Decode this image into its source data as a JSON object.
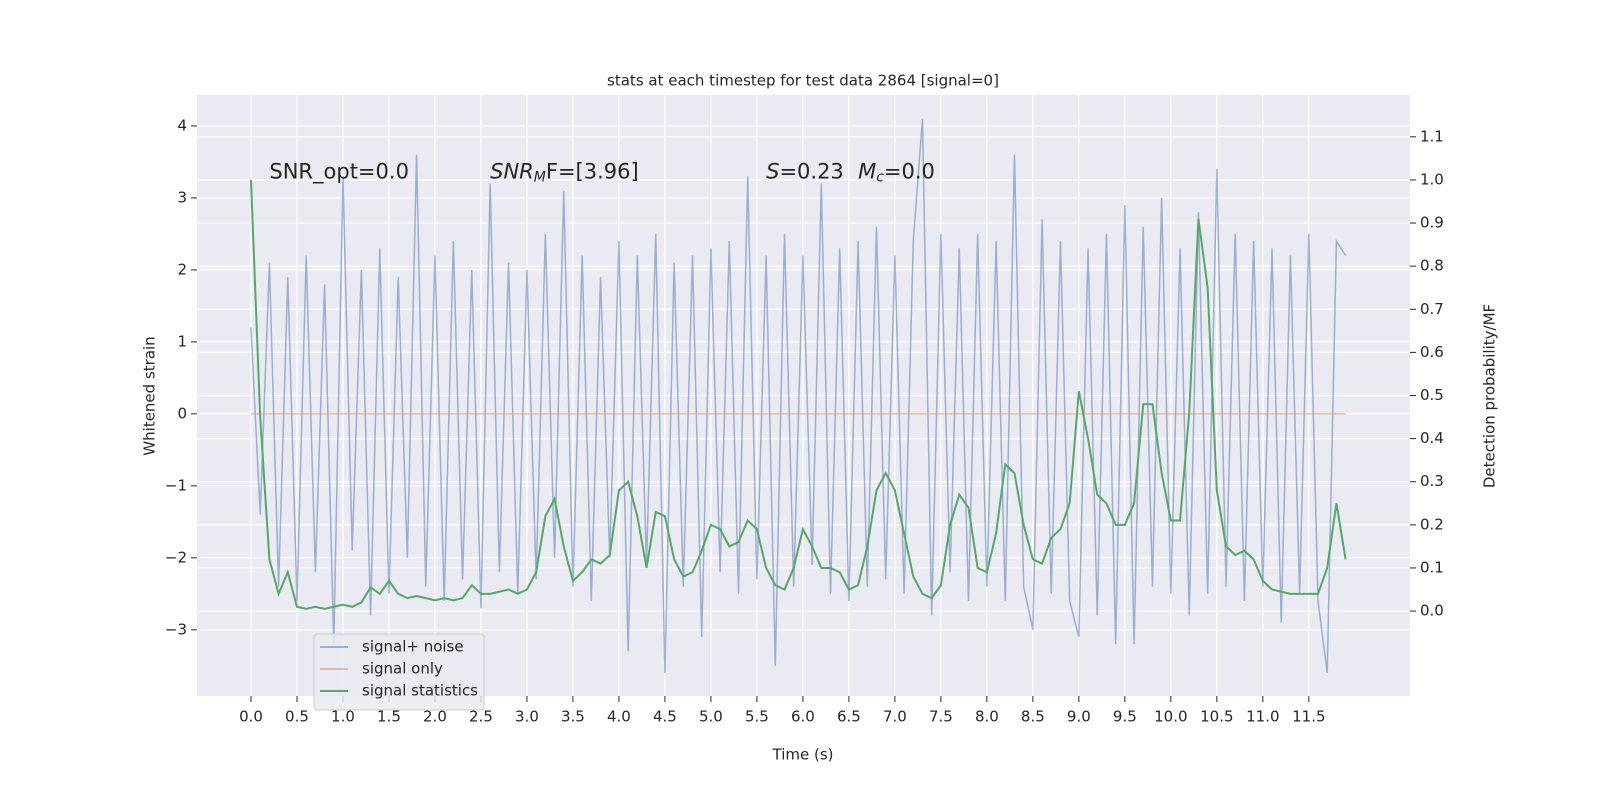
{
  "chart_data": {
    "type": "line",
    "title": "stats at each timestep for test data 2864 [signal=0]",
    "xlabel": "Time (s)",
    "ylabel": "Whitened strain",
    "y2label": "Detection probability/MF",
    "annotations": [
      {
        "parts": [
          "SNR_opt=0.0"
        ],
        "x": 0.2,
        "y": 3.35
      },
      {
        "parts": [
          "SNR",
          "M",
          "F=[3.96]"
        ],
        "x": 2.6,
        "y": 3.35
      },
      {
        "parts": [
          "S",
          "=0.23"
        ],
        "x": 5.6,
        "y": 3.35
      },
      {
        "parts": [
          "M",
          "c",
          "=0.0"
        ],
        "x": 6.6,
        "y": 3.35
      }
    ],
    "xlim": [
      -0.587,
      12.6
    ],
    "ylim": [
      -3.92,
      4.43
    ],
    "y2lim": [
      -0.197,
      1.197
    ],
    "xticks": [
      {
        "value": 0,
        "label": "0.0"
      },
      0.5,
      {
        "value": 1,
        "label": "1.0"
      },
      1.5,
      {
        "value": 2,
        "label": "2.0"
      },
      2.5,
      {
        "value": 3,
        "label": "3.0"
      },
      3.5,
      {
        "value": 4,
        "label": "4.0"
      },
      4.5,
      {
        "value": 5,
        "label": "5.0"
      },
      5.5,
      {
        "value": 6,
        "label": "6.0"
      },
      6.5,
      {
        "value": 7,
        "label": "7.0"
      },
      7.5,
      {
        "value": 8,
        "label": "8.0"
      },
      8.5,
      {
        "value": 9,
        "label": "9.0"
      },
      9.5,
      {
        "value": 10,
        "label": "10.0"
      },
      10.5,
      {
        "value": 11,
        "label": "11.0"
      },
      11.5
    ],
    "yticks": [
      {
        "value": -3,
        "label": "−3"
      },
      {
        "value": -2,
        "label": "−2"
      },
      {
        "value": -1,
        "label": "−1"
      },
      0,
      1,
      2,
      3,
      4
    ],
    "y2ticks": [
      {
        "value": 0,
        "label": "0.0"
      },
      0.1,
      0.2,
      0.3,
      0.4,
      0.5,
      0.6,
      0.7,
      0.8,
      0.9,
      {
        "value": 1,
        "label": "1.0"
      },
      1.1
    ],
    "grid": true,
    "legend": "lower left",
    "x": [
      0,
      0.1,
      0.2,
      0.3,
      0.4,
      0.5,
      0.6,
      0.7,
      0.8,
      0.9,
      1,
      1.1,
      1.2,
      1.3,
      1.4,
      1.5,
      1.6,
      1.7,
      1.8,
      1.9,
      2,
      2.1,
      2.2,
      2.3,
      2.4,
      2.5,
      2.6,
      2.7,
      2.8,
      2.9,
      3,
      3.1,
      3.2,
      3.3,
      3.4,
      3.5,
      3.6,
      3.7,
      3.8,
      3.9,
      4,
      4.1,
      4.2,
      4.3,
      4.4,
      4.5,
      4.6,
      4.7,
      4.8,
      4.9,
      5,
      5.1,
      5.2,
      5.3,
      5.4,
      5.5,
      5.6,
      5.7,
      5.8,
      5.9,
      6,
      6.1,
      6.2,
      6.3,
      6.4,
      6.5,
      6.6,
      6.7,
      6.8,
      6.9,
      7,
      7.1,
      7.2,
      7.3,
      7.4,
      7.5,
      7.6,
      7.7,
      7.8,
      7.9,
      8,
      8.1,
      8.2,
      8.3,
      8.4,
      8.5,
      8.6,
      8.7,
      8.8,
      8.9,
      9,
      9.1,
      9.2,
      9.3,
      9.4,
      9.5,
      9.6,
      9.7,
      9.8,
      9.9,
      10,
      10.1,
      10.2,
      10.3,
      10.4,
      10.5,
      10.6,
      10.7,
      10.8,
      10.9,
      11,
      11.1,
      11.2,
      11.3,
      11.4,
      11.5,
      11.6,
      11.7,
      11.8,
      11.9
    ],
    "series": [
      {
        "name": "signal+ noise",
        "color": "#4c72b0",
        "axis": "y",
        "values": [
          1.2,
          -1.4,
          2.1,
          -2.4,
          1.9,
          -2.6,
          2.2,
          -2.2,
          1.8,
          -3.2,
          3.3,
          -1.9,
          2.0,
          -2.8,
          2.3,
          -2.5,
          1.9,
          -2.0,
          3.6,
          -2.4,
          2.2,
          -2.6,
          2.4,
          -2.3,
          2.0,
          -2.7,
          3.2,
          -2.2,
          2.1,
          -2.5,
          2.0,
          -2.3,
          2.5,
          -2.0,
          3.1,
          -2.4,
          2.2,
          -2.6,
          1.9,
          -2.0,
          2.4,
          -3.3,
          2.2,
          -2.1,
          2.5,
          -3.6,
          2.1,
          -2.4,
          2.2,
          -3.1,
          2.3,
          -2.2,
          2.4,
          -2.5,
          3.3,
          -2.3,
          2.2,
          -3.5,
          2.5,
          -2.4,
          2.2,
          -2.1,
          3.2,
          -2.5,
          2.3,
          -2.6,
          2.4,
          -2.4,
          2.6,
          -2.3,
          2.2,
          -2.5,
          2.4,
          4.1,
          -2.8,
          2.5,
          -2.2,
          2.3,
          -2.6,
          2.5,
          -2.4,
          2.4,
          -2.6,
          3.6,
          -2.4,
          -3.0,
          2.7,
          -2.5,
          2.4,
          -2.6,
          -3.1,
          2.3,
          -2.8,
          2.5,
          -3.2,
          2.9,
          -3.2,
          2.6,
          -2.4,
          3.0,
          -2.5,
          2.3,
          -2.8,
          2.8,
          -2.5,
          3.4,
          -2.4,
          2.5,
          -2.6,
          2.4,
          -2.4,
          2.3,
          -2.9,
          2.2,
          -2.5,
          2.5,
          -2.6,
          -3.6,
          2.4,
          2.2
        ]
      },
      {
        "name": "signal only",
        "color": "#dd8452",
        "axis": "y",
        "values": [
          0,
          0,
          0,
          0,
          0,
          0,
          0,
          0,
          0,
          0,
          0,
          0,
          0,
          0,
          0,
          0,
          0,
          0,
          0,
          0,
          0,
          0,
          0,
          0,
          0,
          0,
          0,
          0,
          0,
          0,
          0,
          0,
          0,
          0,
          0,
          0,
          0,
          0,
          0,
          0,
          0,
          0,
          0,
          0,
          0,
          0,
          0,
          0,
          0,
          0,
          0,
          0,
          0,
          0,
          0,
          0,
          0,
          0,
          0,
          0,
          0,
          0,
          0,
          0,
          0,
          0,
          0,
          0,
          0,
          0,
          0,
          0,
          0,
          0,
          0,
          0,
          0,
          0,
          0,
          0,
          0,
          0,
          0,
          0,
          0,
          0,
          0,
          0,
          0,
          0,
          0,
          0,
          0,
          0,
          0,
          0,
          0,
          0,
          0,
          0,
          0,
          0,
          0,
          0,
          0,
          0,
          0,
          0,
          0,
          0,
          0,
          0,
          0,
          0,
          0,
          0,
          0,
          0,
          0,
          0
        ]
      },
      {
        "name": "signal statistics",
        "color": "#55a868",
        "axis": "y2",
        "values": [
          1.0,
          0.45,
          0.12,
          0.04,
          0.09,
          0.01,
          0.005,
          0.01,
          0.005,
          0.01,
          0.015,
          0.01,
          0.02,
          0.055,
          0.04,
          0.07,
          0.04,
          0.03,
          0.035,
          0.03,
          0.025,
          0.03,
          0.025,
          0.03,
          0.06,
          0.04,
          0.04,
          0.045,
          0.05,
          0.04,
          0.05,
          0.09,
          0.22,
          0.26,
          0.15,
          0.07,
          0.09,
          0.12,
          0.11,
          0.13,
          0.28,
          0.3,
          0.22,
          0.1,
          0.23,
          0.22,
          0.12,
          0.08,
          0.09,
          0.14,
          0.2,
          0.19,
          0.15,
          0.16,
          0.21,
          0.19,
          0.1,
          0.06,
          0.05,
          0.1,
          0.19,
          0.15,
          0.1,
          0.1,
          0.09,
          0.05,
          0.06,
          0.15,
          0.28,
          0.32,
          0.28,
          0.18,
          0.08,
          0.04,
          0.03,
          0.06,
          0.2,
          0.27,
          0.24,
          0.1,
          0.09,
          0.18,
          0.34,
          0.32,
          0.2,
          0.12,
          0.11,
          0.17,
          0.19,
          0.25,
          0.51,
          0.4,
          0.27,
          0.25,
          0.2,
          0.2,
          0.25,
          0.48,
          0.48,
          0.32,
          0.21,
          0.21,
          0.46,
          0.91,
          0.75,
          0.28,
          0.15,
          0.13,
          0.14,
          0.12,
          0.07,
          0.05,
          0.045,
          0.04,
          0.04,
          0.04,
          0.04,
          0.1,
          0.25,
          0.12
        ]
      }
    ]
  }
}
